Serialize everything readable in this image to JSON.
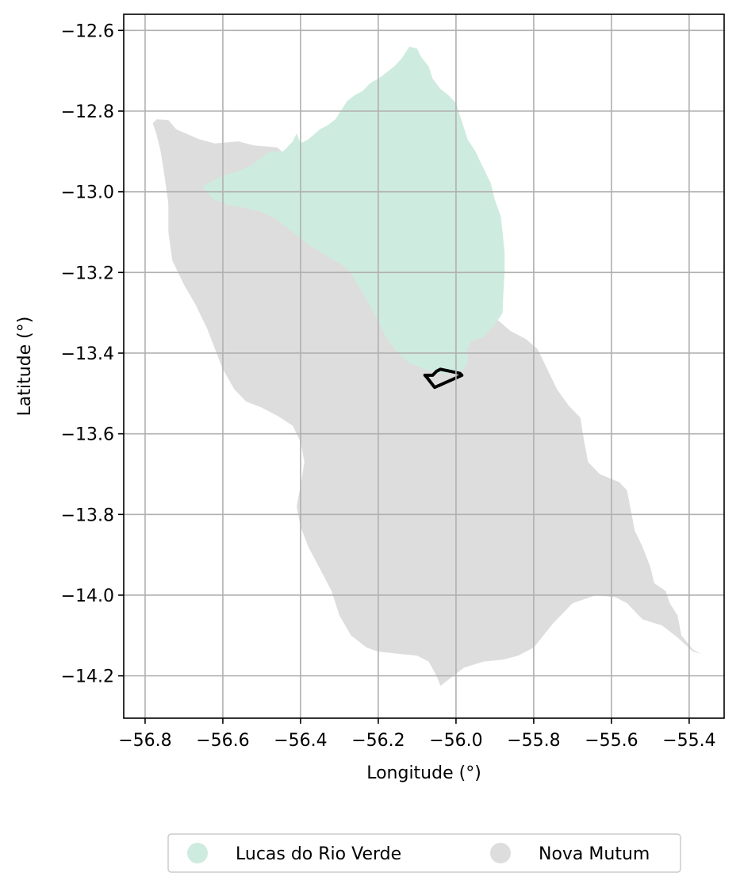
{
  "colors": {
    "lucas": "#ceebdf",
    "nova": "#dddddd",
    "grid": "#b0b0b0",
    "outline": "#000000"
  },
  "chart_data": {
    "type": "map",
    "xlabel": "Longitude (°)",
    "ylabel": "Latitude (°)",
    "xlim": [
      -56.855,
      -55.31
    ],
    "ylim": [
      -14.305,
      -12.56
    ],
    "grid": true,
    "xticks": [
      -56.8,
      -56.6,
      -56.4,
      -56.2,
      -56.0,
      -55.8,
      -55.6,
      -55.4
    ],
    "xtick_labels": [
      "−56.8",
      "−56.6",
      "−56.4",
      "−56.2",
      "−56.0",
      "−55.8",
      "−55.6",
      "−55.4"
    ],
    "yticks": [
      -12.6,
      -12.8,
      -13.0,
      -13.2,
      -13.4,
      -13.6,
      -13.8,
      -14.0,
      -14.2
    ],
    "ytick_labels": [
      "−12.6",
      "−12.8",
      "−13.0",
      "−13.2",
      "−13.4",
      "−13.6",
      "−13.8",
      "−14.0",
      "−14.2"
    ],
    "legend": {
      "placement": "bottom-center",
      "entries": [
        {
          "label": "Lucas do Rio Verde",
          "color": "#ceebdf"
        },
        {
          "label": "Nova Mutum",
          "color": "#dddddd"
        }
      ]
    },
    "regions": [
      {
        "name": "Nova Mutum",
        "color": "#dddddd",
        "polygon": [
          [
            -56.77,
            -12.82
          ],
          [
            -56.74,
            -12.822
          ],
          [
            -56.72,
            -12.845
          ],
          [
            -56.66,
            -12.87
          ],
          [
            -56.62,
            -12.88
          ],
          [
            -56.56,
            -12.875
          ],
          [
            -56.52,
            -12.885
          ],
          [
            -56.46,
            -12.89
          ],
          [
            -56.42,
            -12.925
          ],
          [
            -56.36,
            -12.955
          ],
          [
            -56.31,
            -12.975
          ],
          [
            -56.22,
            -12.985
          ],
          [
            -56.18,
            -13.0
          ],
          [
            -56.14,
            -13.06
          ],
          [
            -56.1,
            -13.14
          ],
          [
            -56.06,
            -13.2
          ],
          [
            -56.0,
            -13.26
          ],
          [
            -55.94,
            -13.3
          ],
          [
            -55.89,
            -13.32
          ],
          [
            -55.86,
            -13.345
          ],
          [
            -55.82,
            -13.365
          ],
          [
            -55.79,
            -13.39
          ],
          [
            -55.76,
            -13.45
          ],
          [
            -55.74,
            -13.49
          ],
          [
            -55.71,
            -13.53
          ],
          [
            -55.68,
            -13.56
          ],
          [
            -55.67,
            -13.62
          ],
          [
            -55.66,
            -13.67
          ],
          [
            -55.63,
            -13.7
          ],
          [
            -55.58,
            -13.72
          ],
          [
            -55.56,
            -13.74
          ],
          [
            -55.55,
            -13.79
          ],
          [
            -55.54,
            -13.84
          ],
          [
            -55.52,
            -13.88
          ],
          [
            -55.5,
            -13.93
          ],
          [
            -55.49,
            -13.97
          ],
          [
            -55.46,
            -13.99
          ],
          [
            -55.45,
            -14.02
          ],
          [
            -55.43,
            -14.05
          ],
          [
            -55.42,
            -14.1
          ],
          [
            -55.39,
            -14.135
          ],
          [
            -55.37,
            -14.145
          ],
          [
            -55.39,
            -14.14
          ],
          [
            -55.43,
            -14.105
          ],
          [
            -55.47,
            -14.075
          ],
          [
            -55.52,
            -14.06
          ],
          [
            -55.56,
            -14.02
          ],
          [
            -55.59,
            -14.005
          ],
          [
            -55.64,
            -14.0
          ],
          [
            -55.7,
            -14.02
          ],
          [
            -55.75,
            -14.07
          ],
          [
            -55.8,
            -14.13
          ],
          [
            -55.84,
            -14.15
          ],
          [
            -55.88,
            -14.16
          ],
          [
            -55.93,
            -14.165
          ],
          [
            -55.98,
            -14.18
          ],
          [
            -56.02,
            -14.21
          ],
          [
            -56.04,
            -14.225
          ],
          [
            -56.05,
            -14.2
          ],
          [
            -56.07,
            -14.165
          ],
          [
            -56.1,
            -14.15
          ],
          [
            -56.15,
            -14.145
          ],
          [
            -56.2,
            -14.14
          ],
          [
            -56.23,
            -14.13
          ],
          [
            -56.27,
            -14.1
          ],
          [
            -56.3,
            -14.05
          ],
          [
            -56.32,
            -13.99
          ],
          [
            -56.35,
            -13.935
          ],
          [
            -56.38,
            -13.88
          ],
          [
            -56.4,
            -13.83
          ],
          [
            -56.41,
            -13.78
          ],
          [
            -56.4,
            -13.73
          ],
          [
            -56.39,
            -13.67
          ],
          [
            -56.4,
            -13.62
          ],
          [
            -56.42,
            -13.58
          ],
          [
            -56.46,
            -13.555
          ],
          [
            -56.5,
            -13.535
          ],
          [
            -56.54,
            -13.52
          ],
          [
            -56.57,
            -13.49
          ],
          [
            -56.6,
            -13.44
          ],
          [
            -56.62,
            -13.39
          ],
          [
            -56.64,
            -13.34
          ],
          [
            -56.67,
            -13.28
          ],
          [
            -56.7,
            -13.23
          ],
          [
            -56.73,
            -13.17
          ],
          [
            -56.74,
            -13.1
          ],
          [
            -56.74,
            -13.03
          ],
          [
            -56.75,
            -12.96
          ],
          [
            -56.76,
            -12.9
          ],
          [
            -56.77,
            -12.86
          ],
          [
            -56.78,
            -12.83
          ]
        ]
      },
      {
        "name": "Lucas do Rio Verde",
        "color": "#ceebdf",
        "polygon": [
          [
            -56.65,
            -12.985
          ],
          [
            -56.6,
            -12.96
          ],
          [
            -56.55,
            -12.945
          ],
          [
            -56.52,
            -12.93
          ],
          [
            -56.48,
            -12.9
          ],
          [
            -56.445,
            -12.9
          ],
          [
            -56.43,
            -12.885
          ],
          [
            -56.42,
            -12.875
          ],
          [
            -56.41,
            -12.855
          ],
          [
            -56.4,
            -12.88
          ],
          [
            -56.38,
            -12.87
          ],
          [
            -56.35,
            -12.845
          ],
          [
            -56.33,
            -12.835
          ],
          [
            -56.31,
            -12.82
          ],
          [
            -56.29,
            -12.79
          ],
          [
            -56.28,
            -12.775
          ],
          [
            -56.26,
            -12.76
          ],
          [
            -56.24,
            -12.75
          ],
          [
            -56.22,
            -12.73
          ],
          [
            -56.2,
            -12.72
          ],
          [
            -56.18,
            -12.705
          ],
          [
            -56.16,
            -12.69
          ],
          [
            -56.14,
            -12.67
          ],
          [
            -56.12,
            -12.64
          ],
          [
            -56.1,
            -12.645
          ],
          [
            -56.09,
            -12.665
          ],
          [
            -56.07,
            -12.69
          ],
          [
            -56.06,
            -12.72
          ],
          [
            -56.04,
            -12.745
          ],
          [
            -56.02,
            -12.76
          ],
          [
            -56.0,
            -12.78
          ],
          [
            -55.99,
            -12.81
          ],
          [
            -55.98,
            -12.84
          ],
          [
            -55.97,
            -12.87
          ],
          [
            -55.95,
            -12.9
          ],
          [
            -55.93,
            -12.94
          ],
          [
            -55.91,
            -12.98
          ],
          [
            -55.9,
            -13.02
          ],
          [
            -55.885,
            -13.06
          ],
          [
            -55.88,
            -13.1
          ],
          [
            -55.875,
            -13.15
          ],
          [
            -55.875,
            -13.2
          ],
          [
            -55.878,
            -13.25
          ],
          [
            -55.88,
            -13.3
          ],
          [
            -55.9,
            -13.33
          ],
          [
            -55.93,
            -13.36
          ],
          [
            -55.96,
            -13.37
          ],
          [
            -55.97,
            -13.39
          ],
          [
            -55.97,
            -13.42
          ],
          [
            -55.98,
            -13.44
          ],
          [
            -56.0,
            -13.45
          ],
          [
            -56.04,
            -13.45
          ],
          [
            -56.08,
            -13.44
          ],
          [
            -56.12,
            -13.425
          ],
          [
            -56.15,
            -13.4
          ],
          [
            -56.18,
            -13.36
          ],
          [
            -56.2,
            -13.32
          ],
          [
            -56.24,
            -13.25
          ],
          [
            -56.28,
            -13.19
          ],
          [
            -56.33,
            -13.16
          ],
          [
            -56.38,
            -13.13
          ],
          [
            -56.42,
            -13.1
          ],
          [
            -56.46,
            -13.07
          ],
          [
            -56.5,
            -13.05
          ],
          [
            -56.54,
            -13.04
          ],
          [
            -56.58,
            -13.035
          ],
          [
            -56.62,
            -13.02
          ],
          [
            -56.645,
            -13.0
          ]
        ]
      },
      {
        "name": "outline",
        "color": "none",
        "polygon": [
          [
            -56.08,
            -13.455
          ],
          [
            -56.075,
            -13.46
          ],
          [
            -56.055,
            -13.485
          ],
          [
            -55.985,
            -13.455
          ],
          [
            -55.99,
            -13.45
          ],
          [
            -56.04,
            -13.44
          ],
          [
            -56.05,
            -13.445
          ],
          [
            -56.06,
            -13.455
          ],
          [
            -56.08,
            -13.455
          ]
        ]
      }
    ]
  }
}
